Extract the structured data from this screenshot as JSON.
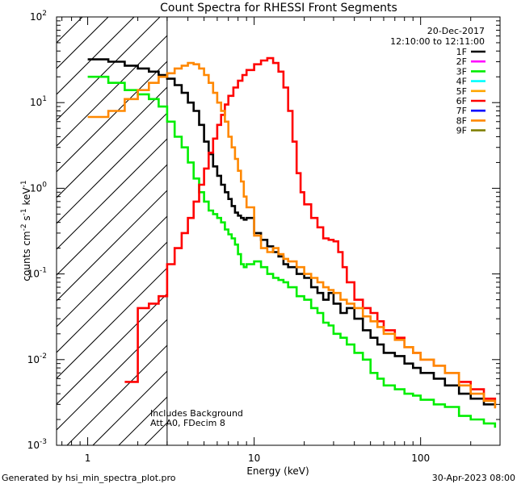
{
  "chart_data": {
    "type": "line",
    "title": "Count Spectra for RHESSI Front Segments",
    "xlabel": "Energy (keV)",
    "ylabel_parts": {
      "pre": "counts cm",
      "e1": "-2",
      "mid": " s",
      "e2": "-1",
      "post": " keV",
      "e3": "-1"
    },
    "xscale": "log",
    "yscale": "log",
    "xlim": [
      0.65,
      300
    ],
    "ylim": [
      0.001,
      100
    ],
    "x_ticks": [
      {
        "value": 1,
        "label": "1"
      },
      {
        "value": 10,
        "label": "10"
      },
      {
        "value": 100,
        "label": "100"
      }
    ],
    "y_ticks": [
      {
        "value": 0.001,
        "base": "10",
        "exp": "-3"
      },
      {
        "value": 0.01,
        "base": "10",
        "exp": "-2"
      },
      {
        "value": 0.1,
        "base": "10",
        "exp": "-1"
      },
      {
        "value": 1,
        "base": "10",
        "exp": "0"
      },
      {
        "value": 10,
        "base": "10",
        "exp": "1"
      },
      {
        "value": 100,
        "base": "10",
        "exp": "2"
      }
    ],
    "date": "20-Dec-2017",
    "time_range": "12:10:00 to 12:11:00",
    "threshold_energy": 3,
    "annotations": [
      "Includes Background",
      "Att A0, FDecim 8"
    ],
    "legend": [
      {
        "name": "1F",
        "color": "#000000"
      },
      {
        "name": "2F",
        "color": "#ff00ff"
      },
      {
        "name": "3F",
        "color": "#00ee00"
      },
      {
        "name": "4F",
        "color": "#00ffff"
      },
      {
        "name": "5F",
        "color": "#ffa500"
      },
      {
        "name": "6F",
        "color": "#ff0000"
      },
      {
        "name": "7F",
        "color": "#0000ff"
      },
      {
        "name": "8F",
        "color": "#ff8800"
      },
      {
        "name": "9F",
        "color": "#808000"
      }
    ],
    "series": [
      {
        "name": "1F",
        "color": "#000000",
        "points": [
          [
            1.0,
            32
          ],
          [
            1.33,
            30
          ],
          [
            1.67,
            27
          ],
          [
            2.0,
            25
          ],
          [
            2.33,
            23
          ],
          [
            2.67,
            21
          ],
          [
            3.0,
            19
          ],
          [
            3.33,
            16
          ],
          [
            3.67,
            13
          ],
          [
            4.0,
            10
          ],
          [
            4.33,
            8
          ],
          [
            4.67,
            5.5
          ],
          [
            5.0,
            3.5
          ],
          [
            5.33,
            2.5
          ],
          [
            5.67,
            1.8
          ],
          [
            6.0,
            1.4
          ],
          [
            6.33,
            1.1
          ],
          [
            6.67,
            0.9
          ],
          [
            7.0,
            0.75
          ],
          [
            7.33,
            0.62
          ],
          [
            7.67,
            0.52
          ],
          [
            8.0,
            0.48
          ],
          [
            8.33,
            0.45
          ],
          [
            8.67,
            0.43
          ],
          [
            9.0,
            0.45
          ],
          [
            10,
            0.3
          ],
          [
            11,
            0.25
          ],
          [
            12,
            0.21
          ],
          [
            13,
            0.18
          ],
          [
            14,
            0.16
          ],
          [
            15,
            0.13
          ],
          [
            16,
            0.12
          ],
          [
            18,
            0.1
          ],
          [
            20,
            0.09
          ],
          [
            22,
            0.07
          ],
          [
            24,
            0.06
          ],
          [
            26,
            0.05
          ],
          [
            28,
            0.06
          ],
          [
            30,
            0.045
          ],
          [
            33,
            0.035
          ],
          [
            36,
            0.04
          ],
          [
            40,
            0.03
          ],
          [
            45,
            0.022
          ],
          [
            50,
            0.018
          ],
          [
            55,
            0.015
          ],
          [
            60,
            0.012
          ],
          [
            70,
            0.011
          ],
          [
            80,
            0.009
          ],
          [
            90,
            0.008
          ],
          [
            100,
            0.007
          ],
          [
            120,
            0.006
          ],
          [
            140,
            0.005
          ],
          [
            170,
            0.004
          ],
          [
            200,
            0.0035
          ],
          [
            240,
            0.003
          ],
          [
            280,
            0.0028
          ]
        ]
      },
      {
        "name": "3F",
        "color": "#00ee00",
        "points": [
          [
            1.0,
            20
          ],
          [
            1.33,
            17
          ],
          [
            1.67,
            14
          ],
          [
            2.0,
            12.5
          ],
          [
            2.33,
            11
          ],
          [
            2.67,
            9
          ],
          [
            3.0,
            6
          ],
          [
            3.33,
            4
          ],
          [
            3.67,
            3
          ],
          [
            4.0,
            2
          ],
          [
            4.33,
            1.3
          ],
          [
            4.67,
            0.9
          ],
          [
            5.0,
            0.7
          ],
          [
            5.33,
            0.55
          ],
          [
            5.67,
            0.5
          ],
          [
            6.0,
            0.45
          ],
          [
            6.33,
            0.4
          ],
          [
            6.67,
            0.33
          ],
          [
            7.0,
            0.29
          ],
          [
            7.33,
            0.26
          ],
          [
            7.67,
            0.22
          ],
          [
            8.0,
            0.17
          ],
          [
            8.33,
            0.13
          ],
          [
            8.67,
            0.12
          ],
          [
            9.0,
            0.13
          ],
          [
            10,
            0.14
          ],
          [
            11,
            0.12
          ],
          [
            12,
            0.1
          ],
          [
            13,
            0.09
          ],
          [
            14,
            0.085
          ],
          [
            15,
            0.08
          ],
          [
            16,
            0.07
          ],
          [
            18,
            0.055
          ],
          [
            20,
            0.05
          ],
          [
            22,
            0.04
          ],
          [
            24,
            0.035
          ],
          [
            26,
            0.027
          ],
          [
            28,
            0.025
          ],
          [
            30,
            0.02
          ],
          [
            33,
            0.018
          ],
          [
            36,
            0.015
          ],
          [
            40,
            0.012
          ],
          [
            45,
            0.01
          ],
          [
            50,
            0.007
          ],
          [
            55,
            0.006
          ],
          [
            60,
            0.005
          ],
          [
            70,
            0.0045
          ],
          [
            80,
            0.004
          ],
          [
            90,
            0.0038
          ],
          [
            100,
            0.0034
          ],
          [
            120,
            0.003
          ],
          [
            140,
            0.0028
          ],
          [
            170,
            0.0022
          ],
          [
            200,
            0.002
          ],
          [
            240,
            0.0018
          ],
          [
            280,
            0.0016
          ]
        ]
      },
      {
        "name": "6F",
        "color": "#ff0000",
        "points": [
          [
            1.67,
            0.0055
          ],
          [
            2.0,
            0.04
          ],
          [
            2.33,
            0.045
          ],
          [
            2.67,
            0.055
          ],
          [
            3.0,
            0.13
          ],
          [
            3.33,
            0.2
          ],
          [
            3.67,
            0.3
          ],
          [
            4.0,
            0.45
          ],
          [
            4.33,
            0.7
          ],
          [
            4.67,
            1.1
          ],
          [
            5.0,
            1.7
          ],
          [
            5.33,
            2.6
          ],
          [
            5.67,
            3.8
          ],
          [
            6.0,
            5.5
          ],
          [
            6.33,
            7.2
          ],
          [
            6.67,
            9.5
          ],
          [
            7.0,
            12
          ],
          [
            7.5,
            15
          ],
          [
            8.0,
            18
          ],
          [
            8.5,
            21
          ],
          [
            9.0,
            24
          ],
          [
            10,
            28
          ],
          [
            11,
            31
          ],
          [
            12,
            33
          ],
          [
            13,
            29
          ],
          [
            14,
            23
          ],
          [
            15,
            15
          ],
          [
            16,
            8
          ],
          [
            17,
            3.5
          ],
          [
            18,
            1.5
          ],
          [
            19,
            0.9
          ],
          [
            20,
            0.65
          ],
          [
            22,
            0.45
          ],
          [
            24,
            0.35
          ],
          [
            26,
            0.26
          ],
          [
            28,
            0.25
          ],
          [
            30,
            0.24
          ],
          [
            32,
            0.18
          ],
          [
            34,
            0.12
          ],
          [
            36,
            0.08
          ],
          [
            40,
            0.05
          ],
          [
            45,
            0.04
          ],
          [
            50,
            0.035
          ],
          [
            55,
            0.028
          ],
          [
            60,
            0.022
          ],
          [
            70,
            0.018
          ],
          [
            80,
            0.014
          ],
          [
            90,
            0.012
          ],
          [
            100,
            0.01
          ],
          [
            120,
            0.0085
          ],
          [
            140,
            0.007
          ],
          [
            170,
            0.0055
          ],
          [
            200,
            0.0045
          ],
          [
            240,
            0.0035
          ],
          [
            280,
            0.003
          ]
        ]
      },
      {
        "name": "8F",
        "color": "#ff8800",
        "points": [
          [
            1.0,
            6.8
          ],
          [
            1.33,
            8
          ],
          [
            1.67,
            11
          ],
          [
            2.0,
            14
          ],
          [
            2.33,
            17
          ],
          [
            2.67,
            20
          ],
          [
            3.0,
            22
          ],
          [
            3.33,
            25
          ],
          [
            3.67,
            27
          ],
          [
            4.0,
            29
          ],
          [
            4.33,
            28
          ],
          [
            4.67,
            25
          ],
          [
            5.0,
            21
          ],
          [
            5.33,
            17
          ],
          [
            5.67,
            13
          ],
          [
            6.0,
            10
          ],
          [
            6.33,
            8
          ],
          [
            6.67,
            6
          ],
          [
            7.0,
            4
          ],
          [
            7.33,
            3
          ],
          [
            7.67,
            2.2
          ],
          [
            8.0,
            1.6
          ],
          [
            8.33,
            1.2
          ],
          [
            8.67,
            0.8
          ],
          [
            9.0,
            0.6
          ],
          [
            10,
            0.28
          ],
          [
            11,
            0.2
          ],
          [
            12,
            0.18
          ],
          [
            13,
            0.2
          ],
          [
            14,
            0.17
          ],
          [
            15,
            0.15
          ],
          [
            16,
            0.14
          ],
          [
            18,
            0.12
          ],
          [
            20,
            0.1
          ],
          [
            22,
            0.09
          ],
          [
            24,
            0.08
          ],
          [
            26,
            0.07
          ],
          [
            28,
            0.065
          ],
          [
            30,
            0.06
          ],
          [
            33,
            0.05
          ],
          [
            36,
            0.045
          ],
          [
            40,
            0.04
          ],
          [
            45,
            0.032
          ],
          [
            50,
            0.028
          ],
          [
            55,
            0.024
          ],
          [
            60,
            0.02
          ],
          [
            70,
            0.017
          ],
          [
            80,
            0.014
          ],
          [
            90,
            0.012
          ],
          [
            100,
            0.01
          ],
          [
            120,
            0.0085
          ],
          [
            140,
            0.007
          ],
          [
            170,
            0.005
          ],
          [
            200,
            0.004
          ],
          [
            240,
            0.0033
          ],
          [
            280,
            0.0027
          ]
        ]
      }
    ],
    "footer_left": "Generated by hsi_min_spectra_plot.pro",
    "footer_right": "30-Apr-2023 08:00"
  },
  "colors": {
    "axis": "#000000",
    "background": "#ffffff"
  }
}
